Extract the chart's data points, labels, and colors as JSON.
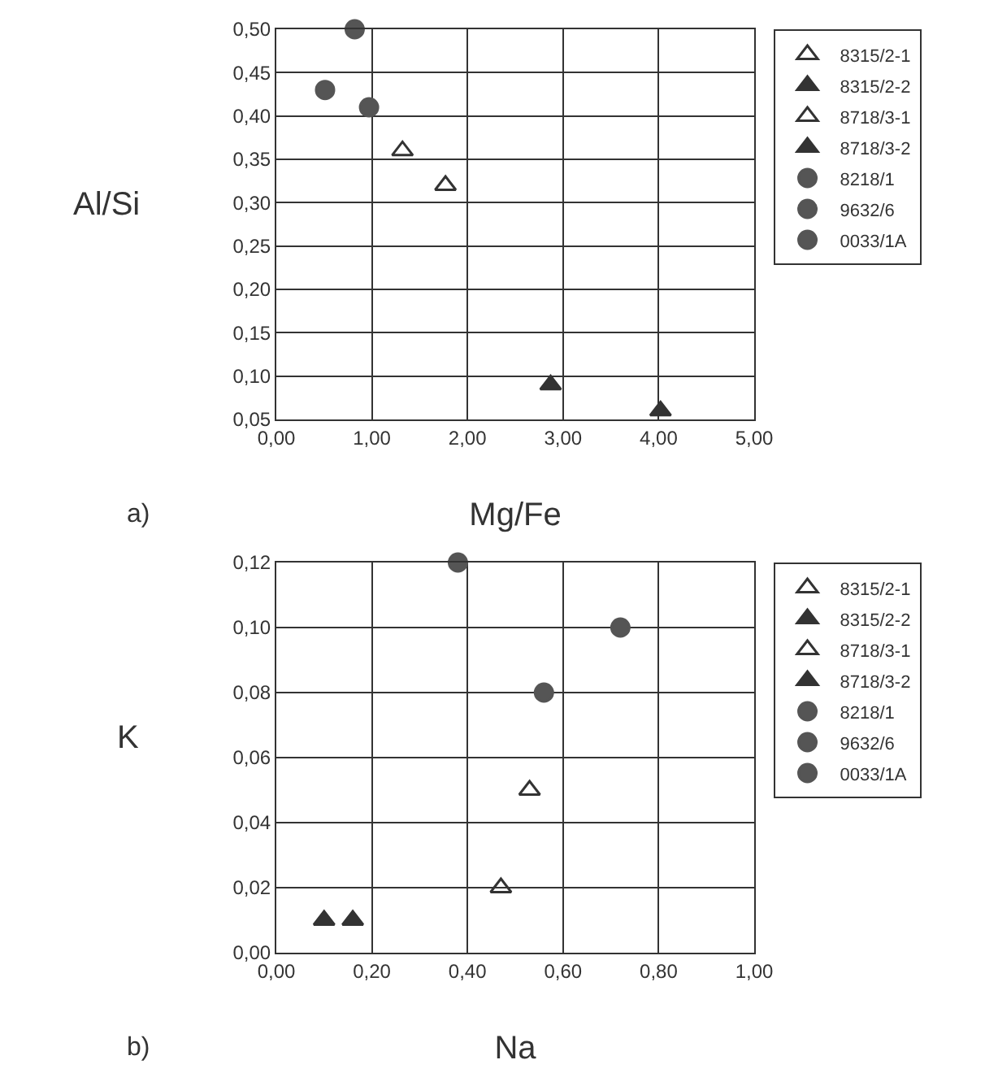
{
  "chart_data": [
    {
      "type": "scatter",
      "xlabel": "Mg/Fe",
      "ylabel": "Al/Si",
      "annotations": [
        "a)"
      ],
      "grid": true,
      "legend": "right",
      "xlim": [
        0,
        5
      ],
      "xticks": [
        {
          "value": 0,
          "label": "0,00"
        },
        {
          "value": 1,
          "label": "1,00"
        },
        {
          "value": 2,
          "label": "2,00"
        },
        {
          "value": 3,
          "label": "3,00"
        },
        {
          "value": 4,
          "label": "4,00"
        },
        {
          "value": 5,
          "label": "5,00"
        }
      ],
      "ylim": [
        0.05,
        0.5
      ],
      "yticks": [
        {
          "value": 0.05,
          "label": "0,05"
        },
        {
          "value": 0.1,
          "label": "0,10"
        },
        {
          "value": 0.15,
          "label": "0,15"
        },
        {
          "value": 0.2,
          "label": "0,20"
        },
        {
          "value": 0.25,
          "label": "0,25"
        },
        {
          "value": 0.3,
          "label": "0,30"
        },
        {
          "value": 0.35,
          "label": "0,35"
        },
        {
          "value": 0.4,
          "label": "0,40"
        },
        {
          "value": 0.45,
          "label": "0,45"
        },
        {
          "value": 0.5,
          "label": "0,50"
        }
      ],
      "series": [
        {
          "name": "8315/2-1",
          "color": "#333333",
          "marker": "triangle-open",
          "x": [
            1.32
          ],
          "values": [
            0.36
          ]
        },
        {
          "name": "8315/2-2",
          "color": "#333333",
          "marker": "triangle",
          "x": [
            2.87
          ],
          "values": [
            0.09
          ]
        },
        {
          "name": "8718/3-1",
          "color": "#333333",
          "marker": "triangle-open",
          "x": [
            1.77
          ],
          "values": [
            0.32
          ]
        },
        {
          "name": "8718/3-2",
          "color": "#333333",
          "marker": "triangle",
          "x": [
            4.02
          ],
          "values": [
            0.06
          ]
        },
        {
          "name": "8218/1",
          "color": "#555555",
          "marker": "circle",
          "x": [
            0.51
          ],
          "values": [
            0.43
          ]
        },
        {
          "name": "9632/6",
          "color": "#555555",
          "marker": "circle",
          "x": [
            0.82
          ],
          "values": [
            0.5
          ]
        },
        {
          "name": "0033/1A",
          "color": "#555555",
          "marker": "circle",
          "x": [
            0.97
          ],
          "values": [
            0.41
          ]
        }
      ]
    },
    {
      "type": "scatter",
      "xlabel": "Na",
      "ylabel": "K",
      "annotations": [
        "b)"
      ],
      "grid": true,
      "legend": "right",
      "xlim": [
        0,
        1
      ],
      "xticks": [
        {
          "value": 0,
          "label": "0,00"
        },
        {
          "value": 0.2,
          "label": "0,20"
        },
        {
          "value": 0.4,
          "label": "0,40"
        },
        {
          "value": 0.6,
          "label": "0,60"
        },
        {
          "value": 0.8,
          "label": "0,80"
        },
        {
          "value": 1,
          "label": "1,00"
        }
      ],
      "ylim": [
        0,
        0.12
      ],
      "yticks": [
        {
          "value": 0,
          "label": "0,00"
        },
        {
          "value": 0.02,
          "label": "0,02"
        },
        {
          "value": 0.04,
          "label": "0,04"
        },
        {
          "value": 0.06,
          "label": "0,06"
        },
        {
          "value": 0.08,
          "label": "0,08"
        },
        {
          "value": 0.1,
          "label": "0,10"
        },
        {
          "value": 0.12,
          "label": "0,12"
        }
      ],
      "series": [
        {
          "name": "8315/2-1",
          "color": "#333333",
          "marker": "triangle-open",
          "x": [
            0.47
          ],
          "values": [
            0.02
          ]
        },
        {
          "name": "8315/2-2",
          "color": "#333333",
          "marker": "triangle",
          "x": [
            0.1
          ],
          "values": [
            0.01
          ]
        },
        {
          "name": "8718/3-1",
          "color": "#333333",
          "marker": "triangle-open",
          "x": [
            0.53
          ],
          "values": [
            0.05
          ]
        },
        {
          "name": "8718/3-2",
          "color": "#333333",
          "marker": "triangle",
          "x": [
            0.16
          ],
          "values": [
            0.01
          ]
        },
        {
          "name": "8218/1",
          "color": "#555555",
          "marker": "circle",
          "x": [
            0.38
          ],
          "values": [
            0.12
          ]
        },
        {
          "name": "9632/6",
          "color": "#555555",
          "marker": "circle",
          "x": [
            0.56
          ],
          "values": [
            0.08
          ]
        },
        {
          "name": "0033/1A",
          "color": "#555555",
          "marker": "circle",
          "x": [
            0.72
          ],
          "values": [
            0.1
          ]
        }
      ]
    }
  ]
}
